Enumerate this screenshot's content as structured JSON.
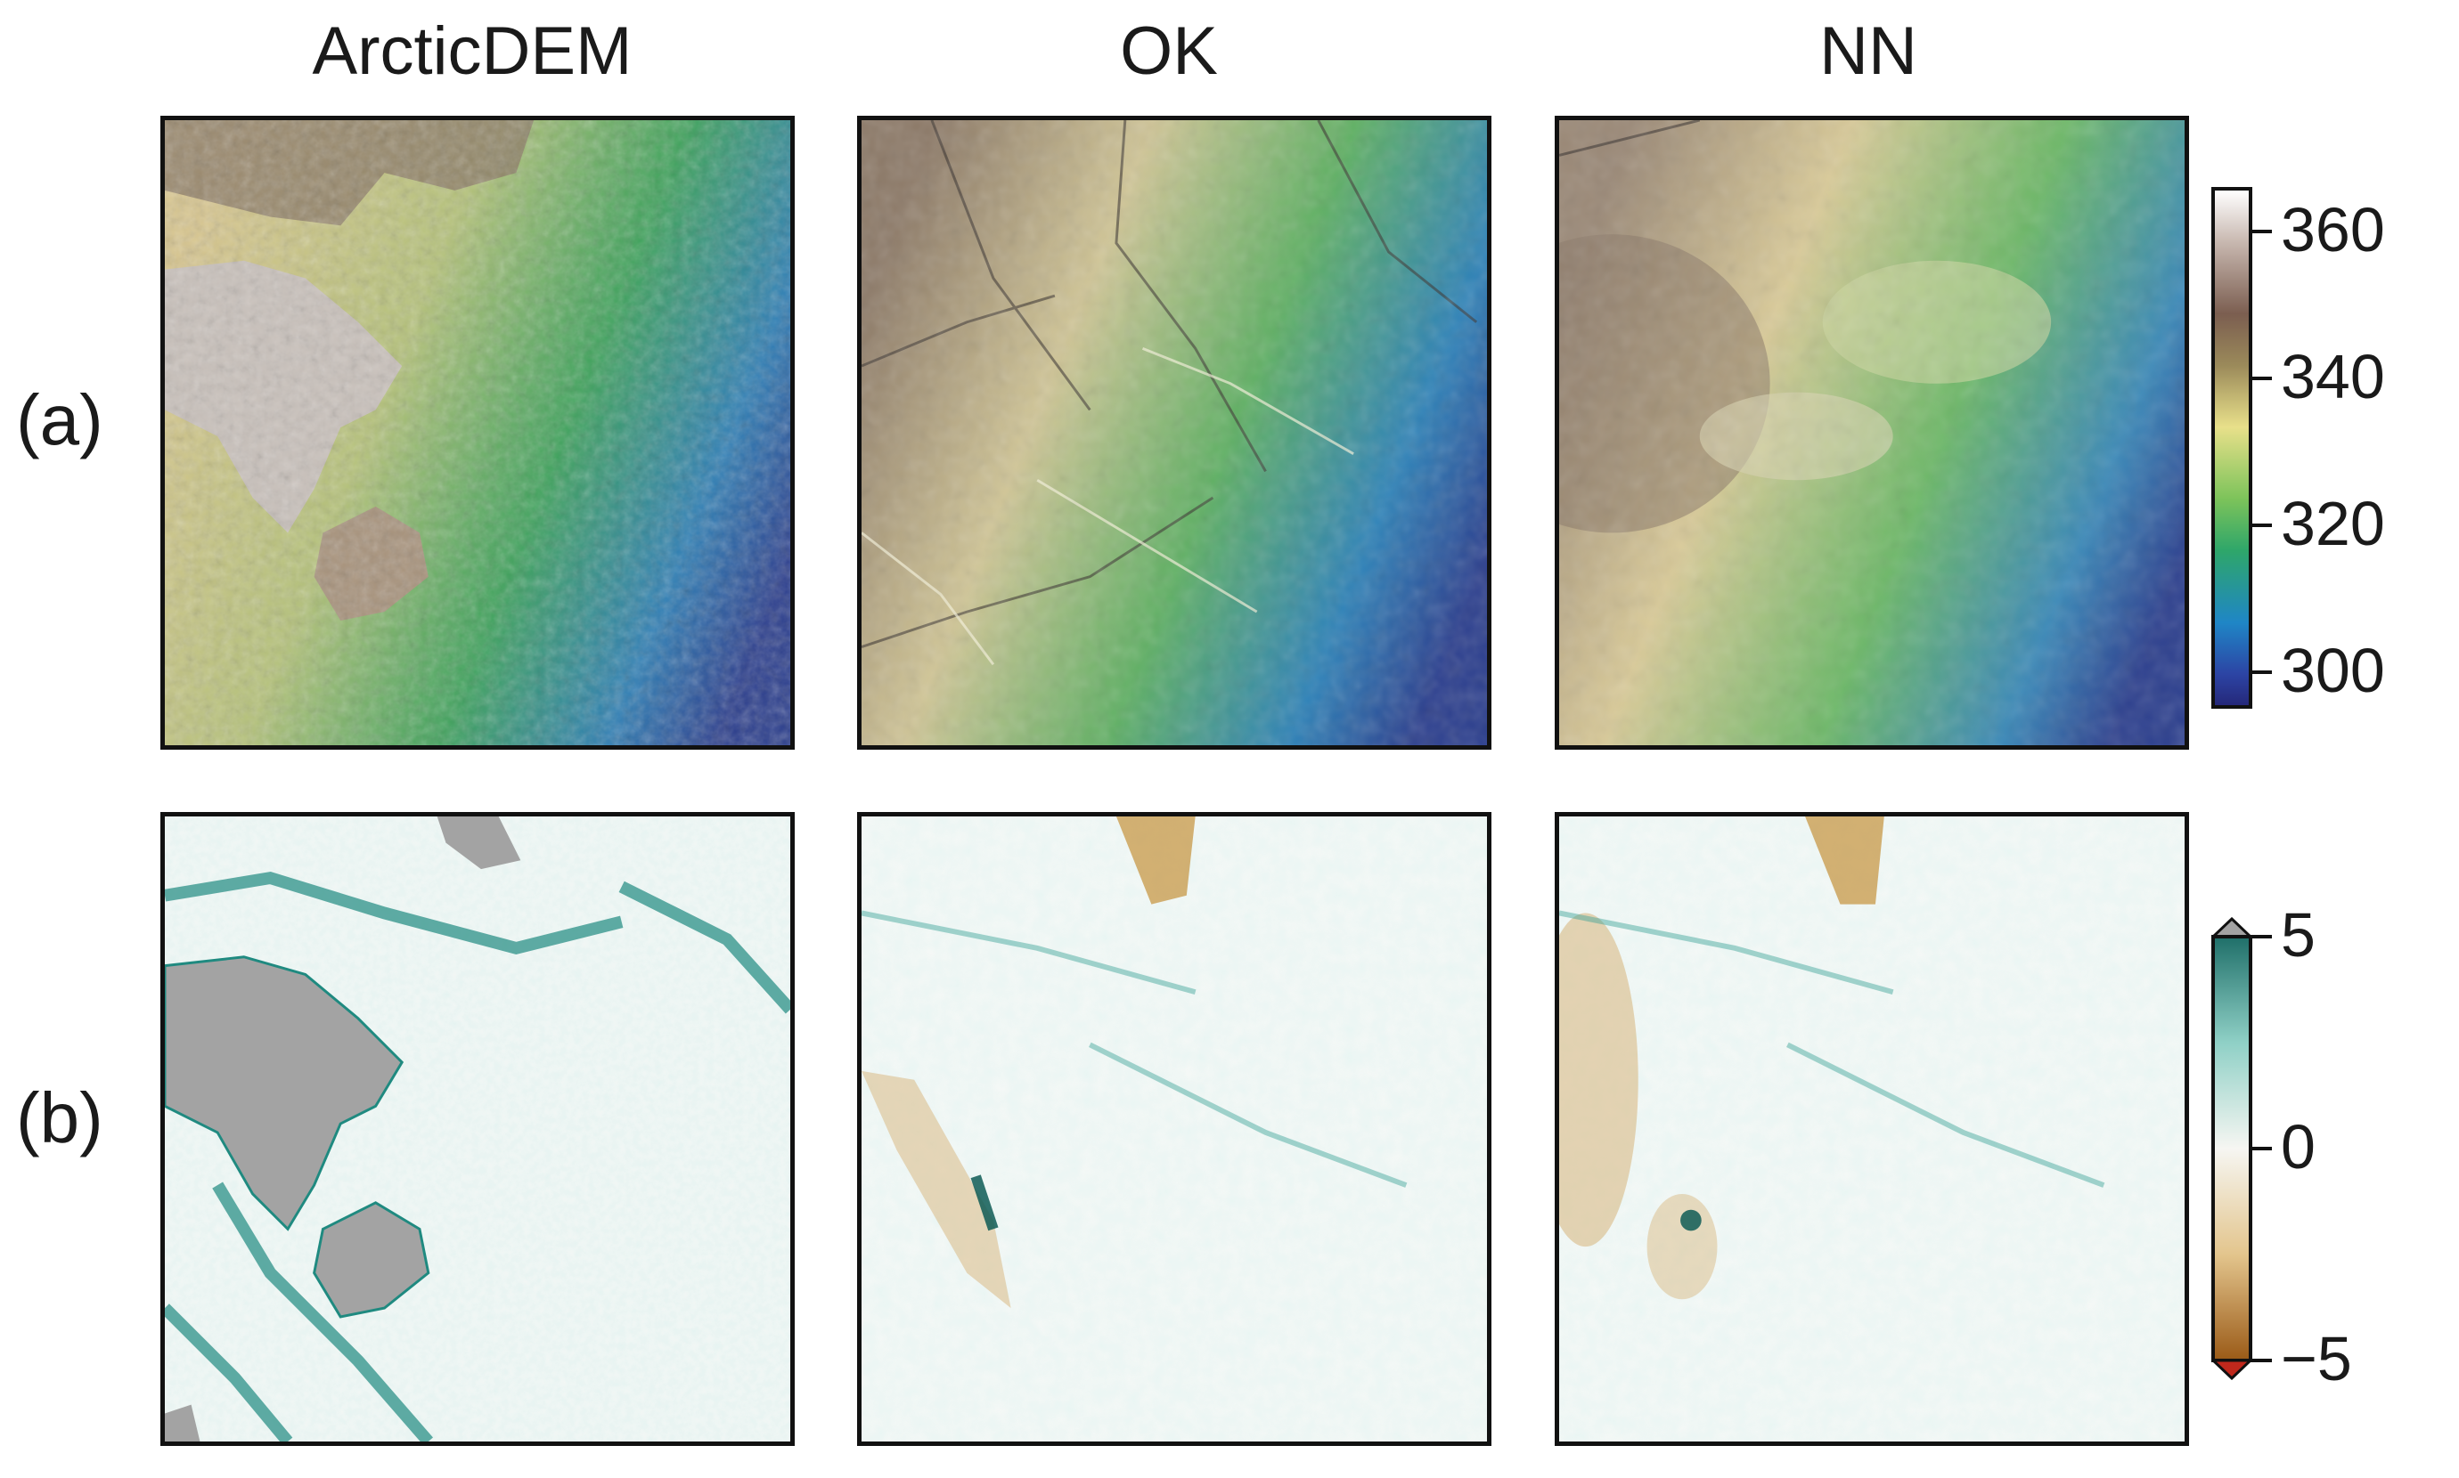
{
  "columns": [
    "ArcticDEM",
    "OK",
    "NN"
  ],
  "rows": [
    "(a)",
    "(b)"
  ],
  "elevation_colorbar": {
    "ticks": [
      "360",
      "340",
      "320",
      "300"
    ],
    "tick_values": [
      360,
      340,
      320,
      300
    ],
    "range": [
      295,
      366
    ],
    "colormap": "gist_earth (blue-green-yellow-brown-white)"
  },
  "difference_colorbar": {
    "ticks": [
      "5",
      "0",
      "−5"
    ],
    "tick_values": [
      5,
      0,
      -5
    ],
    "range": [
      -5,
      5
    ],
    "extend": "both",
    "colormap": "BrBG (brown-white-teal)"
  },
  "colors": {
    "masked_gray": "#a3a3a3",
    "teal": "#1f8a80",
    "brown": "#c4913a"
  }
}
